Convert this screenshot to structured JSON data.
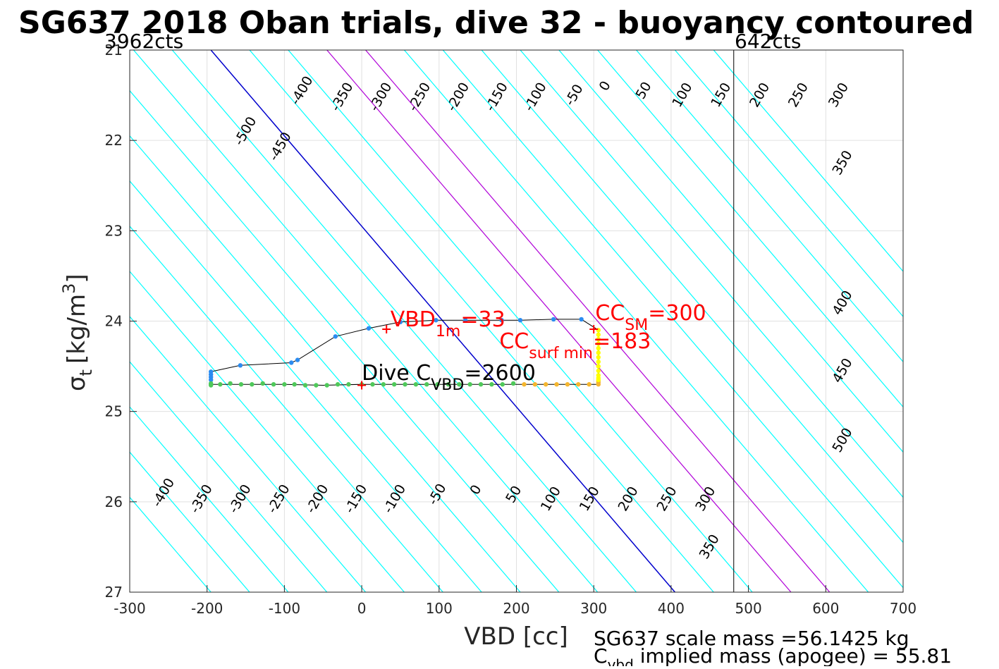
{
  "chart_data": {
    "type": "line",
    "title": "SG637 2018 Oban trials, dive 32 - buoyancy contoured",
    "xlabel": "VBD [cc]",
    "ylabel": "σ",
    "ylabel_subscript": "t",
    "ylabel_units": "[kg/m",
    "ylabel_units_sup": "3",
    "ylabel_units_close": "]",
    "xlim": [
      -300,
      700
    ],
    "ylim": [
      21,
      27
    ],
    "y_reversed": true,
    "grid": true,
    "xticks": [
      -300,
      -200,
      -100,
      0,
      100,
      200,
      300,
      400,
      500,
      600,
      700
    ],
    "xtick_labels": [
      "-300",
      "-200",
      "-100",
      "0",
      "100",
      "200",
      "300",
      "400",
      "500",
      "600",
      "700"
    ],
    "yticks": [
      21,
      22,
      23,
      24,
      25,
      26,
      27
    ],
    "ytick_labels": [
      "21",
      "22",
      "23",
      "24",
      "25",
      "26",
      "27"
    ],
    "top_left_label": "3962cts",
    "top_right_label": "642cts",
    "vbd_limit_x": 481,
    "colors": {
      "contour": "#00ffff",
      "zero_contour": "#0000cd",
      "limit_contour": "#b000d8",
      "limit_line": "#000000",
      "profile": "#000000",
      "annotation": "#ff0000"
    },
    "contours": {
      "slope_cc_per_sigma": 100,
      "x_at_sigma_25": 205,
      "levels": [
        -600,
        -550,
        -500,
        -450,
        -400,
        -350,
        -300,
        -250,
        -200,
        -150,
        -100,
        -50,
        0,
        50,
        100,
        150,
        200,
        250,
        300,
        350,
        400,
        450,
        500,
        550,
        600,
        650
      ],
      "zero_level": 0,
      "limit_levels": [
        150,
        200
      ]
    },
    "contour_labels": [
      {
        "text": "-500",
        "x": -150,
        "y": 21.9
      },
      {
        "text": "-450",
        "x": -105,
        "y": 22.07
      },
      {
        "text": "-400",
        "x": -77,
        "y": 21.45
      },
      {
        "text": "-350",
        "x": -25,
        "y": 21.52
      },
      {
        "text": "-300",
        "x": 25,
        "y": 21.52
      },
      {
        "text": "-250",
        "x": 75,
        "y": 21.52
      },
      {
        "text": "-200",
        "x": 125,
        "y": 21.52
      },
      {
        "text": "-150",
        "x": 175,
        "y": 21.52
      },
      {
        "text": "-100",
        "x": 225,
        "y": 21.52
      },
      {
        "text": "-50",
        "x": 275,
        "y": 21.5
      },
      {
        "text": "0",
        "x": 315,
        "y": 21.4
      },
      {
        "text": "50",
        "x": 365,
        "y": 21.45
      },
      {
        "text": "100",
        "x": 415,
        "y": 21.5
      },
      {
        "text": "150",
        "x": 465,
        "y": 21.5
      },
      {
        "text": "200",
        "x": 515,
        "y": 21.5
      },
      {
        "text": "250",
        "x": 565,
        "y": 21.5
      },
      {
        "text": "300",
        "x": 617,
        "y": 21.5
      },
      {
        "text": "350",
        "x": 622,
        "y": 22.25
      },
      {
        "text": "400",
        "x": 622,
        "y": 23.8
      },
      {
        "text": "450",
        "x": 622,
        "y": 24.55
      },
      {
        "text": "500",
        "x": 622,
        "y": 25.32
      },
      {
        "text": "-400",
        "x": -256,
        "y": 25.9
      },
      {
        "text": "-350",
        "x": -207,
        "y": 25.97
      },
      {
        "text": "-300",
        "x": -157,
        "y": 25.97
      },
      {
        "text": "-250",
        "x": -107,
        "y": 25.97
      },
      {
        "text": "-200",
        "x": -57,
        "y": 25.97
      },
      {
        "text": "-150",
        "x": -7,
        "y": 25.97
      },
      {
        "text": "-100",
        "x": 43,
        "y": 25.97
      },
      {
        "text": "-50",
        "x": 98,
        "y": 25.92
      },
      {
        "text": "0",
        "x": 148,
        "y": 25.87
      },
      {
        "text": "50",
        "x": 197,
        "y": 25.92
      },
      {
        "text": "100",
        "x": 245,
        "y": 25.97
      },
      {
        "text": "150",
        "x": 295,
        "y": 25.97
      },
      {
        "text": "200",
        "x": 345,
        "y": 25.97
      },
      {
        "text": "250",
        "x": 395,
        "y": 25.97
      },
      {
        "text": "300",
        "x": 445,
        "y": 25.97
      },
      {
        "text": "350",
        "x": 450,
        "y": 26.5
      }
    ],
    "series": [
      {
        "name": "",
        "type": "scatter",
        "color": "#2b8cf0",
        "x": [
          -195,
          -195,
          -195,
          -195,
          -157,
          -91,
          -83,
          -34,
          9,
          50,
          96,
          134,
          181,
          205,
          248,
          284
        ],
        "y": [
          24.56,
          24.59,
          24.62,
          24.65,
          24.49,
          24.46,
          24.43,
          24.17,
          24.08,
          24.01,
          23.99,
          23.99,
          23.99,
          23.99,
          23.98,
          23.98
        ]
      },
      {
        "name": "",
        "type": "scatter",
        "color": "#4fc95a",
        "x": [
          -195,
          -195,
          -195,
          -183,
          -170,
          -156,
          -142,
          -128,
          -114,
          -100,
          -87,
          -73,
          -59,
          -45,
          -31,
          -17,
          0,
          14,
          28,
          42,
          56,
          70,
          84,
          98,
          112,
          126,
          140,
          154,
          168,
          182,
          196
        ],
        "y": [
          24.69,
          24.7,
          24.71,
          24.7,
          24.69,
          24.7,
          24.7,
          24.69,
          24.7,
          24.7,
          24.7,
          24.71,
          24.71,
          24.71,
          24.7,
          24.7,
          24.7,
          24.7,
          24.7,
          24.7,
          24.7,
          24.7,
          24.7,
          24.7,
          24.7,
          24.7,
          24.7,
          24.7,
          24.7,
          24.7,
          24.69
        ]
      },
      {
        "name": "",
        "type": "scatter",
        "color": "#f5b62e",
        "x": [
          210,
          224,
          238,
          252,
          266,
          280,
          294,
          306,
          306,
          306
        ],
        "y": [
          24.7,
          24.7,
          24.7,
          24.7,
          24.7,
          24.7,
          24.7,
          24.7,
          24.68,
          24.66
        ]
      },
      {
        "name": "",
        "type": "scatter",
        "color": "#ffff00",
        "x": [
          306,
          306,
          306,
          306,
          306,
          306,
          306,
          306,
          306,
          306,
          306,
          306,
          306
        ],
        "y": [
          24.1,
          24.15,
          24.2,
          24.25,
          24.3,
          24.35,
          24.4,
          24.45,
          24.5,
          24.55,
          24.6,
          24.63,
          24.65
        ]
      }
    ],
    "profile_line": {
      "x": [
        -195,
        -157,
        -91,
        -83,
        -34,
        9,
        50,
        96,
        134,
        181,
        205,
        248,
        284,
        306,
        306,
        306,
        294,
        250,
        200,
        150,
        100,
        50,
        0,
        -50,
        -100,
        -150,
        -195,
        -195
      ],
      "y": [
        24.56,
        24.49,
        24.46,
        24.43,
        24.17,
        24.08,
        24.01,
        23.99,
        23.99,
        23.99,
        23.99,
        23.98,
        23.98,
        24.1,
        24.4,
        24.7,
        24.7,
        24.7,
        24.7,
        24.7,
        24.7,
        24.7,
        24.7,
        24.71,
        24.7,
        24.7,
        24.7,
        24.56
      ]
    },
    "markers": [
      {
        "x": 32,
        "y": 24.09,
        "color": "#ff0000",
        "type": "plus"
      },
      {
        "x": 0,
        "y": 24.71,
        "color": "#ff0000",
        "type": "plus"
      },
      {
        "x": 300,
        "y": 24.09,
        "color": "#ff0000",
        "type": "plus"
      }
    ],
    "annotations": {
      "vbd1m": {
        "prefix": "VBD",
        "sub": "1m",
        "suffix": "=33",
        "x": 37,
        "y": 24.06
      },
      "ccsm": {
        "prefix": "CC",
        "sub": "SM",
        "suffix": "=300",
        "x": 302,
        "y": 23.99
      },
      "ccsurf": {
        "prefix": "CC",
        "sub": "surf min",
        "suffix": "=183",
        "x": 178,
        "y": 24.3
      },
      "divec": {
        "prefix": "Dive C",
        "sub": "VBD",
        "suffix": "=2600",
        "x": 0,
        "y": 24.65
      }
    },
    "footnote_lines": [
      {
        "text": "SG637 scale mass =56.1425 kg"
      },
      {
        "prefix": "C",
        "sub": "vbd",
        "suffix": " implied mass (apogee) = 55.81"
      }
    ]
  }
}
